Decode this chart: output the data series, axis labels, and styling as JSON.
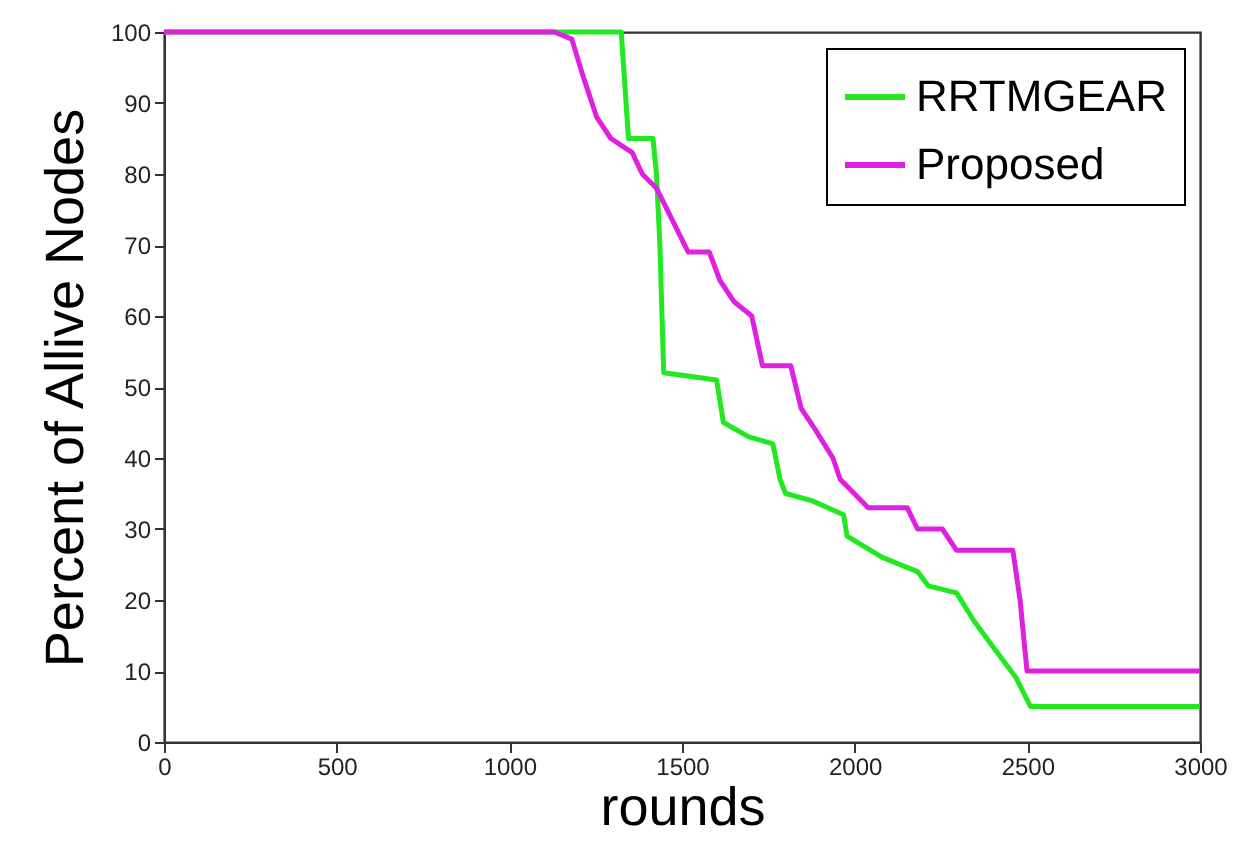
{
  "chart_data": {
    "type": "line",
    "xlabel": "rounds",
    "ylabel": "Percent of Allive Nodes",
    "xlim": [
      0,
      3000
    ],
    "ylim": [
      0,
      100
    ],
    "xticks": [
      0,
      500,
      1000,
      1500,
      2000,
      2500,
      3000
    ],
    "yticks": [
      0,
      10,
      20,
      30,
      40,
      50,
      60,
      70,
      80,
      90,
      100
    ],
    "grid": false,
    "legend": "top right",
    "marker": "none",
    "line_style": "solid",
    "series": [
      {
        "name": "RRTMGEAR",
        "color": "#22e822",
        "x": [
          0,
          1324,
          1345,
          1416,
          1426,
          1436,
          1447,
          1600,
          1620,
          1692,
          1763,
          1784,
          1800,
          1876,
          1968,
          1978,
          2080,
          2182,
          2213,
          2295,
          2346,
          2407,
          2468,
          2509,
          3000
        ],
        "values": [
          100,
          100,
          85,
          85,
          80,
          70,
          52,
          51,
          45,
          43,
          42,
          37,
          35,
          34,
          32,
          29,
          26,
          24,
          22,
          21,
          17,
          13,
          9,
          5,
          5
        ]
      },
      {
        "name": "Proposed",
        "color": "#e020e0",
        "x": [
          0,
          1130,
          1181,
          1212,
          1253,
          1294,
          1356,
          1385,
          1426,
          1467,
          1518,
          1579,
          1610,
          1651,
          1702,
          1733,
          1815,
          1845,
          1886,
          1937,
          1958,
          2039,
          2152,
          2182,
          2254,
          2295,
          2458,
          2479,
          2499,
          3000
        ],
        "values": [
          100,
          100,
          99,
          94,
          88,
          85,
          83,
          80,
          78,
          74,
          69,
          69,
          65,
          62,
          60,
          53,
          53,
          47,
          44,
          40,
          37,
          33,
          33,
          30,
          30,
          27,
          27,
          20,
          10,
          10
        ]
      }
    ]
  }
}
